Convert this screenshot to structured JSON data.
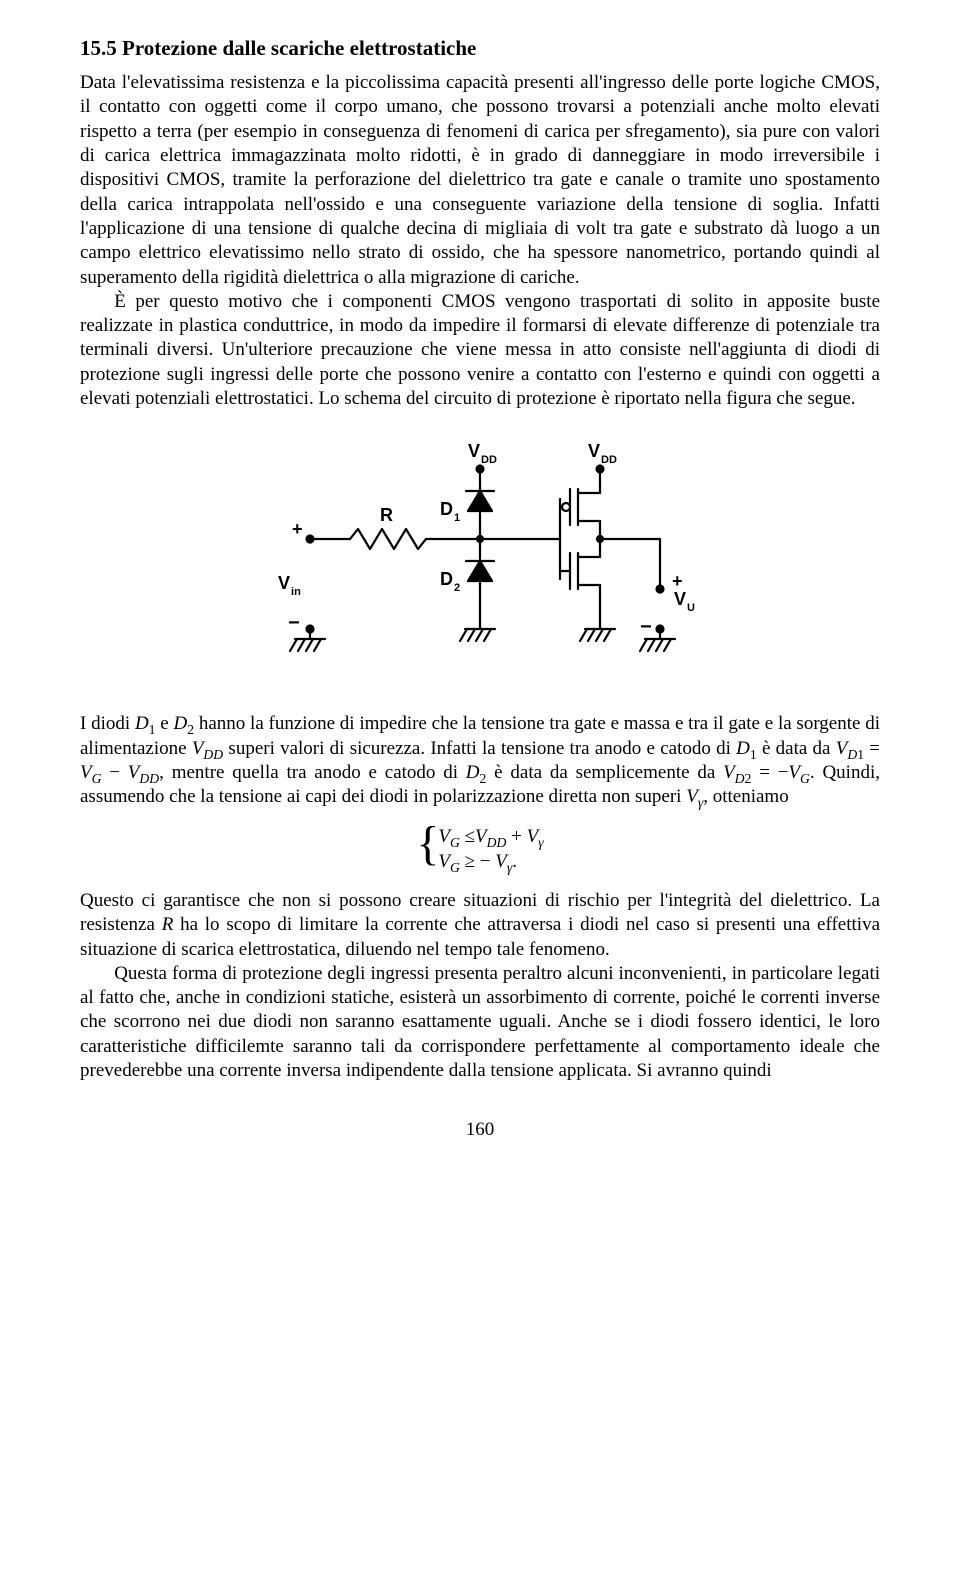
{
  "heading": "15.5 Protezione dalle scariche elettrostatiche",
  "para1_html": "Data l'elevatissima resistenza e la piccolissima capacità presenti all'ingresso delle porte logiche CMOS, il contatto con oggetti come il corpo umano, che possono trovarsi a potenziali anche molto elevati rispetto a terra (per esempio in conseguenza di fenomeni di carica per sfregamento), sia pure con valori di carica elettrica immagazzinata molto ridotti, è in grado di danneggiare in modo irreversibile i dispositivi CMOS, tramite la perforazione del dielettrico tra gate e canale o tramite uno spostamento della carica intrappolata nell'ossido e una conseguente variazione della tensione di soglia. Infatti l'applicazione di una tensione di qualche decina di migliaia di volt tra gate e substrato dà luogo a un campo elettrico elevatissimo nello strato di ossido, che ha spessore nanometrico, portando quindi al superamento della rigidità dielettrica o alla migrazione di cariche.",
  "para2_html": "È per questo motivo che i componenti CMOS vengono trasportati di solito in apposite buste realizzate in plastica conduttrice, in modo da impedire il formarsi di elevate differenze di potenziale tra terminali diversi. Un'ulteriore precauzione che viene messa in atto consiste nell'aggiunta di diodi di protezione sugli ingressi delle porte che possono venire a contatto con l'esterno e quindi con oggetti a elevati potenziali elettrostatici. Lo schema del circuito di protezione è riportato nella figura che segue.",
  "para3_html": "I diodi <span class=\"it\">D</span><sub>1</sub> e <span class=\"it\">D</span><sub>2</sub> hanno la funzione di impedire che la tensione tra gate e massa e tra il gate e la sorgente di alimentazione <span class=\"it\">V</span><sub><span class=\"it\">DD</span></sub> superi valori di sicurezza. Infatti la tensione tra anodo e catodo di <span class=\"it\">D</span><sub>1</sub> è data da <span class=\"it\">V</span><sub><span class=\"it\">D</span>1</sub> = <span class=\"it\">V</span><sub><span class=\"it\">G</span></sub> − <span class=\"it\">V</span><sub><span class=\"it\">DD</span></sub>, mentre quella tra anodo e catodo di <span class=\"it\">D</span><sub>2</sub> è data da semplicemente da <span class=\"it\">V</span><sub><span class=\"it\">D</span>2</sub> = −<span class=\"it\">V</span><sub><span class=\"it\">G</span></sub>. Quindi, assumendo che la tensione ai capi dei diodi in polarizzazione diretta non superi <span class=\"it\">V</span><sub><span class=\"it\">γ</span></sub>, otteniamo",
  "eq_line1_html": "<span class=\"it\">V</span><sub><span class=\"it\">G</span></sub> ≤<span class=\"it\">V</span><sub><span class=\"it\">DD</span></sub> + <span class=\"it\">V</span><sub><span class=\"it\">γ</span></sub>",
  "eq_line2_html": "<span class=\"it\">V</span><sub><span class=\"it\">G</span></sub> ≥ − <span class=\"it\">V</span><sub><span class=\"it\">γ</span></sub>.",
  "para4_html": "Questo ci garantisce che non si possono creare situazioni di rischio per l'integrità del dielettrico. La resistenza <span class=\"it\">R</span> ha lo scopo di limitare la corrente che attraversa i diodi nel caso si presenti una effettiva situazione di scarica elettrostatica, diluendo nel tempo tale fenomeno.",
  "para5_html": "Questa forma di protezione degli ingressi presenta peraltro alcuni inconvenienti, in particolare legati al fatto che, anche in condizioni statiche, esisterà un assorbimento di corrente, poiché le correnti inverse che scorrono nei due diodi non saranno esattamente uguali. Anche se i diodi fossero identici, le loro caratteristiche difficilemte saranno tali da corrispondere perfettamente al comportamento ideale che prevederebbe una corrente inversa indipendente dalla tensione applicata. Si avranno quindi",
  "page_number": "160",
  "circuit": {
    "labels": {
      "vdd_left": "V",
      "vdd_left_sub": "DD",
      "vdd_right": "V",
      "vdd_right_sub": "DD",
      "r": "R",
      "d1": "D",
      "d1_sub": "1",
      "d2": "D",
      "d2_sub": "2",
      "vin": "V",
      "vin_sub": "in",
      "vu": "V",
      "vu_sub": "U",
      "plus": "+",
      "minus": "−"
    },
    "style": {
      "stroke": "#000000",
      "stroke_width": 2.2,
      "font_size_main": 18,
      "font_size_sub": 11,
      "font_weight": "bold"
    }
  }
}
